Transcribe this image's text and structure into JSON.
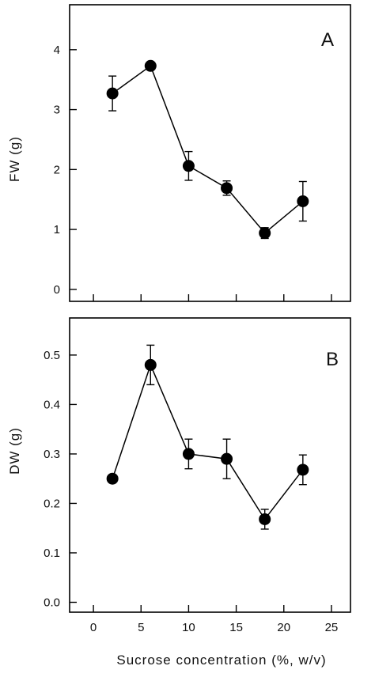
{
  "chart_data": [
    {
      "type": "scatter",
      "panel_label": "A",
      "ylabel": "FW (g)",
      "xlabel": "",
      "xlim": [
        -2.5,
        27
      ],
      "ylim": [
        -0.2,
        4.75
      ],
      "xticks": [
        0,
        5,
        10,
        15,
        20,
        25
      ],
      "yticks": [
        0,
        1,
        2,
        3,
        4
      ],
      "xtick_labels": [],
      "ytick_labels": [
        "0",
        "1",
        "2",
        "3",
        "4"
      ],
      "x": [
        2,
        6,
        10,
        14,
        18,
        22
      ],
      "y": [
        3.27,
        3.73,
        2.06,
        1.69,
        0.94,
        1.47
      ],
      "err": [
        0.29,
        0.0,
        0.24,
        0.12,
        0.09,
        0.33
      ],
      "marker_color": "#000000",
      "line_color": "#000000"
    },
    {
      "type": "scatter",
      "panel_label": "B",
      "ylabel": "DW (g)",
      "xlabel": "Sucrose concentration (%, w/v)",
      "xlim": [
        -2.5,
        27
      ],
      "ylim": [
        -0.02,
        0.575
      ],
      "xticks": [
        0,
        5,
        10,
        15,
        20,
        25
      ],
      "yticks": [
        0.0,
        0.1,
        0.2,
        0.3,
        0.4,
        0.5
      ],
      "xtick_labels": [
        "0",
        "5",
        "10",
        "15",
        "20",
        "25"
      ],
      "ytick_labels": [
        "0.0",
        "0.1",
        "0.2",
        "0.3",
        "0.4",
        "0.5"
      ],
      "x": [
        2,
        6,
        10,
        14,
        18,
        22
      ],
      "y": [
        0.25,
        0.48,
        0.3,
        0.29,
        0.168,
        0.268
      ],
      "err": [
        0.0,
        0.04,
        0.03,
        0.04,
        0.02,
        0.03
      ],
      "marker_color": "#000000",
      "line_color": "#000000"
    }
  ]
}
